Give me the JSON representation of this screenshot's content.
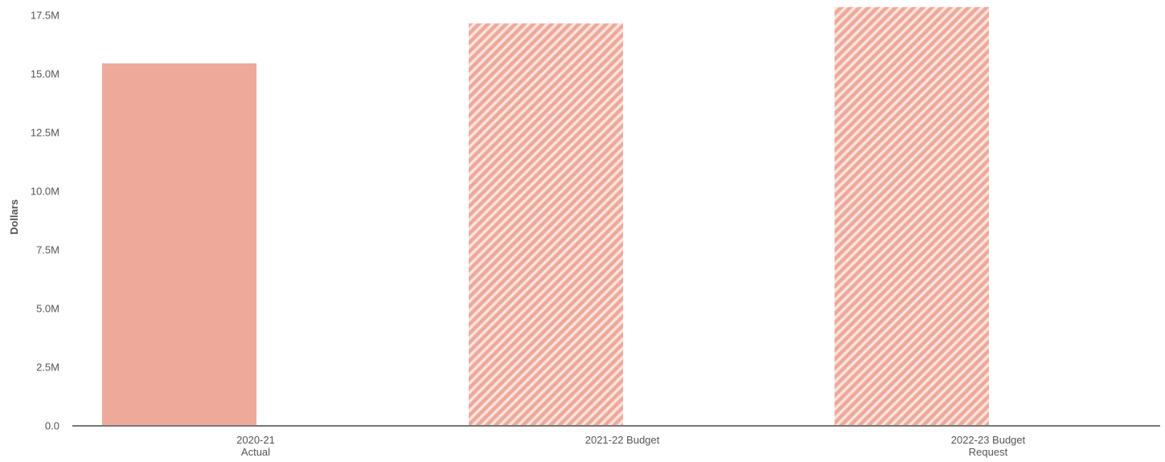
{
  "chart_data": {
    "type": "bar",
    "categories": [
      [
        "2020-21",
        "Actual"
      ],
      [
        "2021-22 Budget"
      ],
      [
        "2022-23 Budget",
        "Request"
      ]
    ],
    "values": [
      15450000,
      17150000,
      17850000
    ],
    "bar_fill_styles": [
      "solid",
      "hatched",
      "hatched"
    ],
    "ylabel": "Dollars",
    "ylim": [
      0,
      17500000
    ],
    "yticks": [
      0,
      2500000,
      5000000,
      7500000,
      10000000,
      12500000,
      15000000,
      17500000
    ],
    "ytick_labels": [
      "0.0",
      "2.5M",
      "5.0M",
      "7.5M",
      "10.0M",
      "12.5M",
      "15.0M",
      "17.5M"
    ],
    "grid": false,
    "colors": {
      "bar": "#eea99b",
      "hatch_light": "#fbe3dd",
      "axis": "#777777",
      "text": "#555555"
    }
  }
}
